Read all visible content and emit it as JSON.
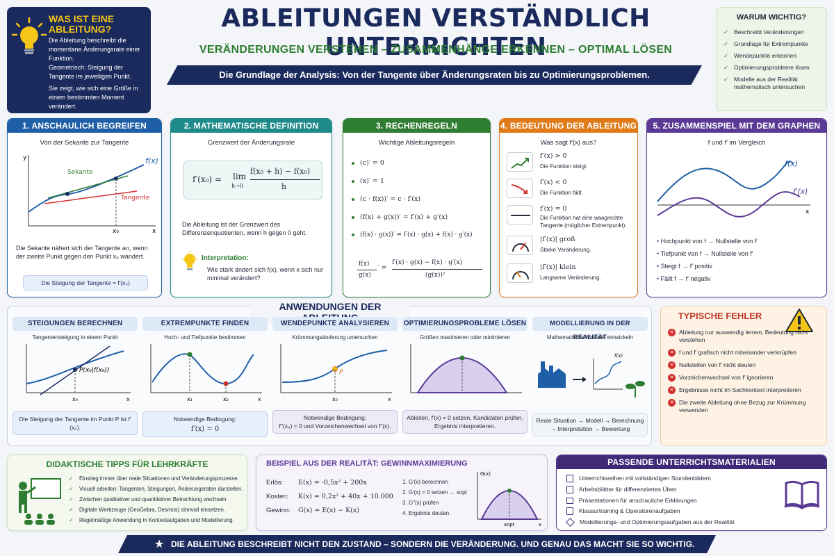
{
  "header": {
    "title": "ABLEITUNGEN VERSTÄNDLICH UNTERRICHTEN",
    "subtitle": "VERÄNDERUNGEN VERSTEHEN – ZUSAMMENHÄNGE ERKENNEN – OPTIMAL LÖSEN",
    "banner": "Die Grundlage der Analysis: Von der Tangente über Änderungsraten bis zu Optimierungsproblemen."
  },
  "what_is": {
    "title": "WAS IST EINE ABLEITUNG?",
    "p1": "Die Ableitung beschreibt die momentane Änderungsrate einer Funktion.",
    "p2": "Geometrisch: Steigung der Tangente im jeweiligen Punkt.",
    "p3": "Sie zeigt, wie sich eine Größe in einem bestimmten Moment verändert."
  },
  "why": {
    "title": "WARUM WICHTIG?",
    "items": [
      "Beschreibt Veränderungen",
      "Grundlage für Extrempunkte",
      "Wendepunkte erkennen",
      "Optimierungsprobleme lösen",
      "Modelle aus der Realität mathematisch untersuchen"
    ]
  },
  "s1": {
    "title": "1. ANSCHAULICH BEGREIFEN",
    "subtitle": "Von der Sekante zur Tangente",
    "label_y": "y",
    "label_x": "x",
    "label_fx": "f(x)",
    "label_sekante": "Sekante",
    "label_tangente": "Tangente",
    "label_x0": "x₀",
    "text": "Die Sekante nähert sich der Tangente an, wenn der zweite Punkt gegen den Punkt x₀ wandert.",
    "box": "Die Steigung der Tangente = f′(x₀)"
  },
  "s2": {
    "title": "2. MATHEMATISCHE DEFINITION",
    "subtitle": "Grenzwert der Änderungsrate",
    "lhs": "f′(x₀) =",
    "lim": "lim",
    "lim_sub": "h→0",
    "num": "f(x₀ + h) − f(x₀)",
    "den": "h",
    "text": "Die Ableitung ist der Grenzwert des Differenzenquotienten, wenn h gegen 0 geht.",
    "interp_title": "Interpretation:",
    "interp_text": "Wie stark ändert sich f(x), wenn x sich nur minimal verändert?"
  },
  "s3": {
    "title": "3. RECHENREGELN",
    "subtitle": "Wichtige Ableitungsregeln",
    "rules": [
      "(c)′ = 0",
      "(x)′ = 1",
      "(c · f(x))′ = c · f′(x)",
      "(f(x) + g(x))′ = f′(x) + g′(x)",
      "(f(x) · g(x))′ = f′(x) · g(x) + f(x) · g′(x)"
    ],
    "q_lhs_num": "f(x)",
    "q_lhs_den": "g(x)",
    "q_rhs_num": "f′(x) · g(x) − f(x) · g′(x)",
    "q_rhs_den": "(g(x))²"
  },
  "s4": {
    "title": "4. BEDEUTUNG DER ABLEITUNG",
    "subtitle": "Was sagt f′(x) aus?",
    "items": [
      {
        "formula": "f′(x) > 0",
        "text": "Die Funktion steigt.",
        "icon": "trend-up-icon"
      },
      {
        "formula": "f′(x) < 0",
        "text": "Die Funktion fällt.",
        "icon": "trend-down-icon"
      },
      {
        "formula": "f′(x) = 0",
        "text": "Die Funktion hat eine waagrechte Tangente (möglicher Extrempunkt).",
        "icon": "flat-line-icon"
      },
      {
        "formula": "|f′(x)| groß",
        "text": "Starke Veränderung.",
        "icon": "gauge-high-icon"
      },
      {
        "formula": "|f′(x)| klein",
        "text": "Langsame Veränderung.",
        "icon": "gauge-low-icon"
      }
    ]
  },
  "s5": {
    "title": "5. ZUSAMMENSPIEL MIT DEM GRAPHEN",
    "subtitle": "f und f′ im Vergleich",
    "label_f": "f(x)",
    "label_fp": "f′(x)",
    "label_x": "x",
    "items": [
      {
        "a": "Hochpunkt von f",
        "b": "Nullstelle von f′"
      },
      {
        "a": "Tiefpunkt von f",
        "b": "Nullstelle von f′"
      },
      {
        "a": "Steigt f",
        "b": "f′ positiv"
      },
      {
        "a": "Fällt f",
        "b": "f′ negativ"
      }
    ]
  },
  "applications": {
    "title": "ANWENDUNGEN DER ABLEITUNG",
    "cards": [
      {
        "title": "STEIGUNGEN BERECHNEN",
        "subtitle": "Tangentensteigung in einem Punkt",
        "point": "P(x₀|f(x₀))",
        "x0": "x₀",
        "box": "Die Steigung der Tangente im Punkt P ist f′(x₀)."
      },
      {
        "title": "EXTREMPUNKTE FINDEN",
        "subtitle": "Hoch- und Tiefpunkte bestimmen",
        "x1": "x₁",
        "x2": "x₂",
        "box_title": "Notwendige Bedingung:",
        "box": "f′(x) = 0"
      },
      {
        "title": "WENDEPUNKTE ANALYSIEREN",
        "subtitle": "Krümmungsänderung untersuchen",
        "point": "P",
        "x0": "x₀",
        "box_title": "Notwendige Bedingung:",
        "box": "f″(x₀) = 0 und Vorzeichenwechsel von f″(x)."
      },
      {
        "title": "OPTIMIERUNGSPROBLEME LÖSEN",
        "subtitle": "Größen maximieren oder minimieren",
        "box": "Ableiten, f′(x) = 0 setzen, Kandidaten prüfen, Ergebnis interpretieren."
      },
      {
        "title": "MODELLIERUNG IN DER REALITÄT",
        "subtitle": "Mathematische Modelle entwickeln",
        "fx": "f(x)",
        "box": "Reale Situation → Modell → Berechnung → Interpretation → Bewertung"
      }
    ]
  },
  "errors": {
    "title": "TYPISCHE FEHLER",
    "items": [
      "Ableitung nur auswendig lernen, Bedeutung nicht verstehen",
      "f und f′ grafisch nicht miteinander verknüpfen",
      "Nullstellen von f′ nicht deuten",
      "Vorzeichenwechsel von f′ ignorieren",
      "Ergebnisse nicht im Sachkontext interpretieren",
      "Die zweite Ableitung ohne Bezug zur Krümmung verwenden"
    ]
  },
  "tips": {
    "title": "DIDAKTISCHE TIPPS FÜR LEHRKRÄFTE",
    "items": [
      "Einstieg immer über reale Situationen und Veränderungsprozesse.",
      "Visuell arbeiten: Tangenten, Steigungen, Änderungsraten darstellen.",
      "Zwischen qualitativer und quantitativer Betrachtung wechseln.",
      "Digitale Werkzeuge (GeoGebra, Desmos) sinnvoll einsetzen.",
      "Regelmäßige Anwendung in Kontextaufgaben und Modellierung."
    ]
  },
  "example": {
    "title": "BEISPIEL AUS DER REALITÄT: GEWINNMAXIMIERUNG",
    "eq": [
      {
        "label": "Erlös:",
        "expr": "E(x) = -0,5x² + 200x"
      },
      {
        "label": "Kosten:",
        "expr": "K(x) = 0,2x² + 40x + 10.000"
      },
      {
        "label": "Gewinn:",
        "expr": "G(x) = E(x) − K(x)"
      }
    ],
    "steps": [
      "1. G′(x) berechnen",
      "2. G′(x) = 0 setzen → xopt",
      "3. G″(x) prüfen",
      "4. Ergebnis deuten"
    ],
    "gx": "G(x)",
    "x": "x",
    "xopt": "xopt"
  },
  "materials": {
    "title": "PASSENDE UNTERRICHTSMATERIALIEN",
    "items": [
      {
        "text": "Unterrichtsreihen mit vollständigen Stundenbildern",
        "icon": "document-icon"
      },
      {
        "text": "Arbeitsblätter für differenziertes Üben",
        "icon": "worksheet-icon"
      },
      {
        "text": "Präsentationen für anschauliche Erklärungen",
        "icon": "presentation-icon"
      },
      {
        "text": "Klausurtraining & Operatorenaufgaben",
        "icon": "exam-icon"
      },
      {
        "text": "Modellierungs- und Optimierungsaufgaben aus der Realität",
        "icon": "model-icon"
      }
    ]
  },
  "footer": "DIE ABLEITUNG BESCHREIBT NICHT DEN ZUSTAND – SONDERN DIE VERÄNDERUNG. UND GENAU DAS MACHT SIE SO WICHTIG.",
  "colors": {
    "navy": "#1b2a5c",
    "blue": "#1f5fa8",
    "teal": "#1f8a8a",
    "green": "#2e7d32",
    "orange": "#e07b1a",
    "purple": "#5b3a96",
    "red": "#d32f2f",
    "yellow": "#f5c518"
  }
}
